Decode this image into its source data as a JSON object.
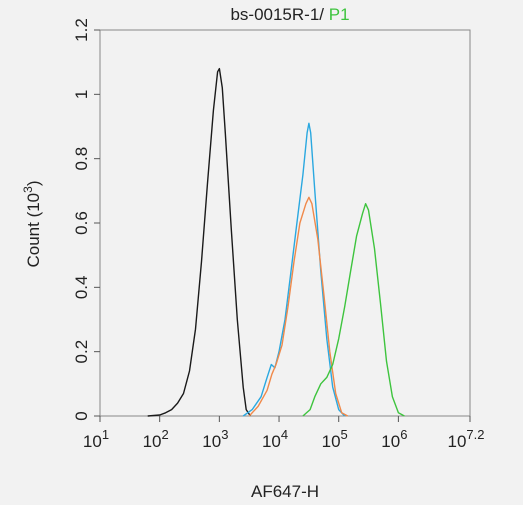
{
  "chart_data": {
    "type": "line",
    "title_parts": [
      {
        "text": "bs-0015R-1/ ",
        "color": "#222222"
      },
      {
        "text": "P1",
        "color": "#3ec43e"
      }
    ],
    "xlabel": "AF647-H",
    "ylabel_main": "Count (10",
    "ylabel_sup": "3",
    "ylabel_close": ")",
    "x_scale": "log",
    "xlim": [
      1,
      7.2
    ],
    "ylim": [
      0,
      1.2
    ],
    "x_ticks": [
      {
        "base": "10",
        "exp": "1",
        "value": 1
      },
      {
        "base": "10",
        "exp": "2",
        "value": 2
      },
      {
        "base": "10",
        "exp": "3",
        "value": 3
      },
      {
        "base": "10",
        "exp": "4",
        "value": 4
      },
      {
        "base": "10",
        "exp": "5",
        "value": 5
      },
      {
        "base": "10",
        "exp": "6",
        "value": 6
      },
      {
        "base": "10",
        "exp": "7.2",
        "value": 7.2
      }
    ],
    "y_ticks": [
      {
        "label": "0",
        "value": 0
      },
      {
        "label": "0.2",
        "value": 0.2
      },
      {
        "label": "0.4",
        "value": 0.4
      },
      {
        "label": "0.6",
        "value": 0.6
      },
      {
        "label": "0.8",
        "value": 0.8
      },
      {
        "label": "1",
        "value": 1.0
      },
      {
        "label": "1.2",
        "value": 1.2
      }
    ],
    "grid": false,
    "legend": "none",
    "series": [
      {
        "color": "#1a1a1a",
        "points": [
          [
            1.8,
            0
          ],
          [
            2.0,
            0.003
          ],
          [
            2.1,
            0.01
          ],
          [
            2.2,
            0.02
          ],
          [
            2.3,
            0.04
          ],
          [
            2.4,
            0.07
          ],
          [
            2.5,
            0.14
          ],
          [
            2.6,
            0.27
          ],
          [
            2.7,
            0.48
          ],
          [
            2.8,
            0.72
          ],
          [
            2.9,
            0.95
          ],
          [
            2.97,
            1.07
          ],
          [
            3.0,
            1.08
          ],
          [
            3.05,
            1.02
          ],
          [
            3.1,
            0.88
          ],
          [
            3.2,
            0.58
          ],
          [
            3.3,
            0.3
          ],
          [
            3.4,
            0.09
          ],
          [
            3.45,
            0.02
          ],
          [
            3.52,
            0
          ]
        ]
      },
      {
        "color": "#2aa8e0",
        "points": [
          [
            3.4,
            0
          ],
          [
            3.55,
            0.02
          ],
          [
            3.7,
            0.06
          ],
          [
            3.8,
            0.12
          ],
          [
            3.87,
            0.16
          ],
          [
            3.93,
            0.15
          ],
          [
            4.0,
            0.2
          ],
          [
            4.1,
            0.3
          ],
          [
            4.2,
            0.45
          ],
          [
            4.3,
            0.6
          ],
          [
            4.4,
            0.75
          ],
          [
            4.47,
            0.88
          ],
          [
            4.5,
            0.91
          ],
          [
            4.53,
            0.88
          ],
          [
            4.6,
            0.7
          ],
          [
            4.7,
            0.45
          ],
          [
            4.8,
            0.24
          ],
          [
            4.9,
            0.09
          ],
          [
            5.0,
            0.02
          ],
          [
            5.1,
            0
          ]
        ]
      },
      {
        "color": "#f0894a",
        "points": [
          [
            3.5,
            0
          ],
          [
            3.65,
            0.03
          ],
          [
            3.8,
            0.08
          ],
          [
            3.88,
            0.13
          ],
          [
            3.95,
            0.16
          ],
          [
            4.05,
            0.22
          ],
          [
            4.15,
            0.34
          ],
          [
            4.25,
            0.48
          ],
          [
            4.35,
            0.6
          ],
          [
            4.45,
            0.66
          ],
          [
            4.5,
            0.68
          ],
          [
            4.55,
            0.66
          ],
          [
            4.65,
            0.55
          ],
          [
            4.75,
            0.38
          ],
          [
            4.85,
            0.2
          ],
          [
            4.95,
            0.07
          ],
          [
            5.05,
            0.01
          ],
          [
            5.15,
            0
          ]
        ]
      },
      {
        "color": "#3ec43e",
        "points": [
          [
            4.4,
            0
          ],
          [
            4.52,
            0.02
          ],
          [
            4.6,
            0.06
          ],
          [
            4.7,
            0.1
          ],
          [
            4.8,
            0.12
          ],
          [
            4.9,
            0.16
          ],
          [
            5.0,
            0.24
          ],
          [
            5.1,
            0.34
          ],
          [
            5.2,
            0.45
          ],
          [
            5.3,
            0.56
          ],
          [
            5.4,
            0.63
          ],
          [
            5.45,
            0.66
          ],
          [
            5.5,
            0.64
          ],
          [
            5.6,
            0.52
          ],
          [
            5.7,
            0.35
          ],
          [
            5.8,
            0.17
          ],
          [
            5.9,
            0.06
          ],
          [
            6.0,
            0.01
          ],
          [
            6.1,
            0
          ]
        ]
      }
    ]
  }
}
